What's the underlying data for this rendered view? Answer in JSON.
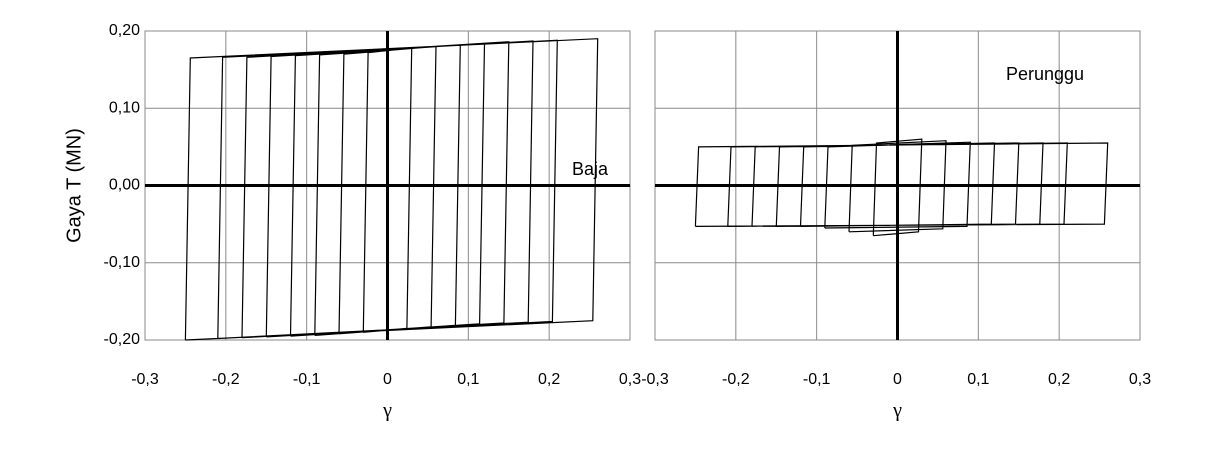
{
  "chart_data": [
    {
      "type": "line",
      "ylabel": "Gaya T (MN)",
      "xlabel": "γ",
      "annotation": "Baja",
      "color": "#000000",
      "grid": true,
      "ytick_labels": true,
      "xlim": [
        -0.3,
        0.3
      ],
      "ylim": [
        -0.2,
        0.2
      ],
      "xticks": [
        {
          "value": -0.3,
          "label": "-0,3"
        },
        {
          "value": -0.2,
          "label": "-0,2"
        },
        {
          "value": -0.1,
          "label": "-0,1"
        },
        0,
        {
          "value": 0.1,
          "label": "0,1"
        },
        {
          "value": 0.2,
          "label": "0,2"
        },
        {
          "value": 0.3,
          "label": "0,3"
        }
      ],
      "yticks": [
        {
          "value": -0.2,
          "label": "-0,20"
        },
        {
          "value": -0.1,
          "label": "-0,10"
        },
        {
          "value": 0,
          "label": "0,00"
        },
        {
          "value": 0.1,
          "label": "0,10"
        },
        {
          "value": 0.2,
          "label": "0,20"
        }
      ],
      "x": [
        -0.03,
        -0.024,
        0.03,
        0.024,
        -0.03,
        null,
        -0.06,
        -0.054,
        0.06,
        0.054,
        -0.06,
        null,
        -0.09,
        -0.084,
        0.09,
        0.084,
        -0.09,
        null,
        -0.12,
        -0.114,
        0.12,
        0.114,
        -0.12,
        null,
        -0.15,
        -0.144,
        0.15,
        0.144,
        -0.15,
        null,
        -0.18,
        -0.174,
        0.18,
        0.174,
        -0.18,
        null,
        -0.21,
        -0.204,
        0.21,
        0.204,
        -0.21,
        null,
        -0.25,
        -0.244,
        0.26,
        0.254,
        -0.25
      ],
      "values": [
        -0.19,
        0.172,
        0.178,
        -0.185,
        -0.19,
        null,
        -0.192,
        0.17,
        0.18,
        -0.183,
        -0.192,
        null,
        -0.194,
        0.169,
        0.182,
        -0.181,
        -0.194,
        null,
        -0.195,
        0.168,
        0.184,
        -0.179,
        -0.195,
        null,
        -0.196,
        0.167,
        0.186,
        -0.178,
        -0.196,
        null,
        -0.197,
        0.166,
        0.187,
        -0.177,
        -0.197,
        null,
        -0.198,
        0.166,
        0.188,
        -0.176,
        -0.198,
        null,
        -0.2,
        0.165,
        0.19,
        -0.175,
        -0.2
      ]
    },
    {
      "type": "line",
      "xlabel": "γ",
      "annotation": "Perunggu",
      "color": "#000000",
      "grid": true,
      "ytick_labels": false,
      "xlim": [
        -0.3,
        0.3
      ],
      "ylim": [
        -0.2,
        0.2
      ],
      "xticks": [
        {
          "value": -0.3,
          "label": "-0,3"
        },
        {
          "value": -0.2,
          "label": "-0,2"
        },
        {
          "value": -0.1,
          "label": "-0,1"
        },
        0,
        {
          "value": 0.1,
          "label": "0,1"
        },
        {
          "value": 0.2,
          "label": "0,2"
        },
        {
          "value": 0.3,
          "label": "0,3"
        }
      ],
      "yticks": [
        -0.2,
        -0.1,
        0,
        0.1,
        0.2
      ],
      "x": [
        -0.03,
        -0.026,
        0.03,
        0.026,
        -0.03,
        null,
        -0.06,
        -0.056,
        0.06,
        0.056,
        -0.06,
        null,
        -0.09,
        -0.086,
        0.09,
        0.086,
        -0.09,
        null,
        -0.12,
        -0.116,
        0.12,
        0.116,
        -0.12,
        null,
        -0.15,
        -0.146,
        0.15,
        0.146,
        -0.15,
        null,
        -0.18,
        -0.176,
        0.18,
        0.176,
        -0.18,
        null,
        -0.21,
        -0.206,
        0.21,
        0.206,
        -0.21,
        null,
        -0.25,
        -0.246,
        0.26,
        0.256,
        -0.25
      ],
      "values": [
        -0.065,
        0.055,
        0.06,
        -0.06,
        -0.065,
        null,
        -0.06,
        0.052,
        0.058,
        -0.056,
        -0.06,
        null,
        -0.055,
        0.05,
        0.056,
        -0.053,
        -0.055,
        null,
        -0.053,
        0.05,
        0.055,
        -0.05,
        -0.053,
        null,
        -0.053,
        0.05,
        0.055,
        -0.05,
        -0.053,
        null,
        -0.053,
        0.05,
        0.055,
        -0.05,
        -0.053,
        null,
        -0.053,
        0.05,
        0.055,
        -0.05,
        -0.053,
        null,
        -0.053,
        0.05,
        0.055,
        -0.05,
        -0.053
      ]
    }
  ]
}
